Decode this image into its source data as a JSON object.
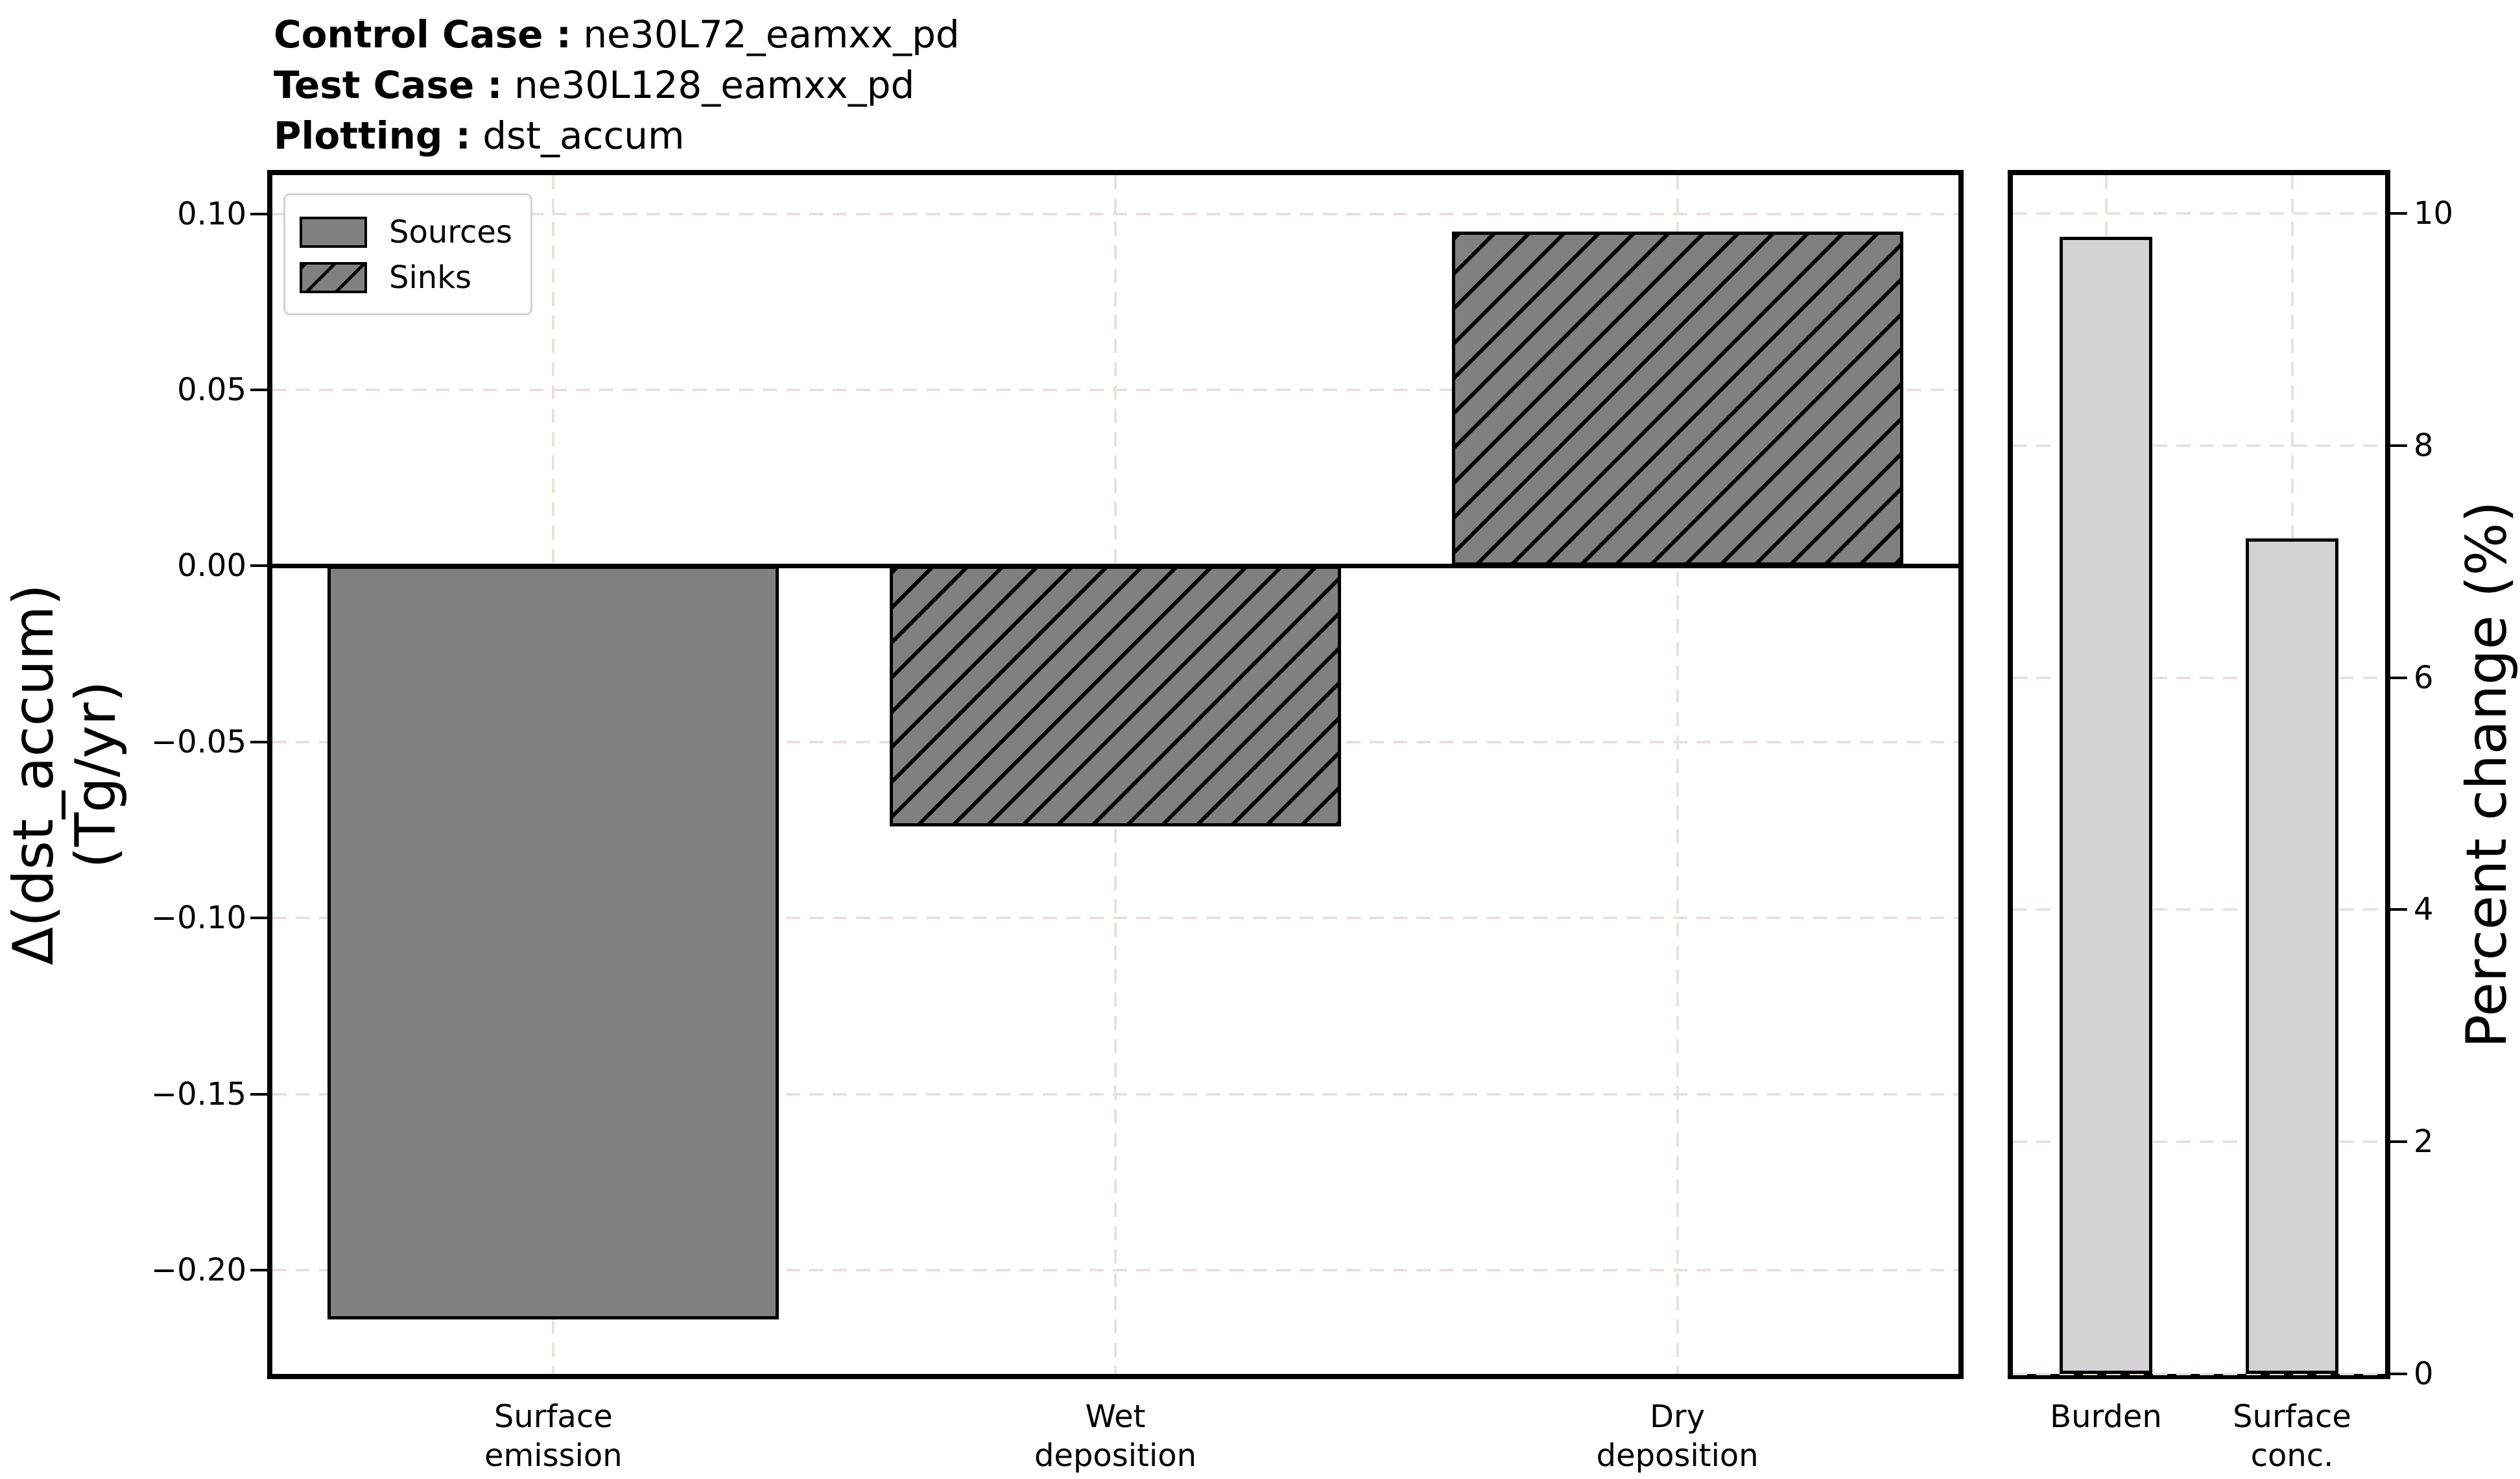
{
  "header": {
    "lines": [
      {
        "label": "Control Case :",
        "value": " ne30L72_eamxx_pd"
      },
      {
        "label": "Test Case :",
        "value": " ne30L128_eamxx_pd"
      },
      {
        "label": "Plotting :",
        "value": " dst_accum"
      }
    ]
  },
  "colors": {
    "source_fill": "#808080",
    "sink_fill": "#808080",
    "hatch": "#000000",
    "right_bar_fill": "#d3d3d3",
    "bar_edge": "#000000",
    "grid": "#e8e2da",
    "legend_border": "#d2d2d2",
    "text": "#000000",
    "background": "#ffffff"
  },
  "legend": {
    "entries": [
      {
        "label": "Sources",
        "style": "solid"
      },
      {
        "label": "Sinks",
        "style": "hatched"
      }
    ]
  },
  "left_axis": {
    "ylabel_lines": [
      "Δ(dst_accum)",
      "(Tg/yr)"
    ]
  },
  "right_axis": {
    "ylabel": "Percent change (%)"
  },
  "chart_data": [
    {
      "type": "bar",
      "title": "",
      "panel": "budget-terms",
      "categories": [
        "Surface emission",
        "Wet deposition",
        "Dry deposition"
      ],
      "category_label_lines": [
        [
          "Surface",
          "emission"
        ],
        [
          "Wet",
          "deposition"
        ],
        [
          "Dry",
          "deposition"
        ]
      ],
      "values": [
        -0.214,
        -0.074,
        0.095
      ],
      "groups": [
        "source",
        "sink",
        "sink"
      ],
      "ylabel": "Δ(dst_accum) (Tg/yr)",
      "yticks": [
        0.1,
        0.05,
        0.0,
        -0.05,
        -0.1,
        -0.15,
        -0.2
      ],
      "ytick_labels": [
        "0.10",
        "0.05",
        "0.00",
        "−0.05",
        "−0.10",
        "−0.15",
        "−0.20"
      ],
      "ylim": [
        -0.2295,
        0.111
      ],
      "zero_line": 0.0,
      "grid": true,
      "legend_position": "upper left",
      "bar_style_by_group": {
        "source": "solid-gray",
        "sink": "gray-hatched"
      }
    },
    {
      "type": "bar",
      "title": "",
      "panel": "percent-change",
      "categories": [
        "Burden",
        "Surface conc."
      ],
      "category_label_lines": [
        [
          "Burden"
        ],
        [
          "Surface",
          "conc."
        ]
      ],
      "values": [
        9.8,
        7.2
      ],
      "ylabel": "Percent change (%)",
      "yticks": [
        0,
        2,
        4,
        6,
        8,
        10
      ],
      "ytick_labels": [
        "0",
        "2",
        "4",
        "6",
        "8",
        "10"
      ],
      "ylim": [
        0,
        10.33
      ],
      "grid": true,
      "bar_style": "lightgray"
    }
  ]
}
